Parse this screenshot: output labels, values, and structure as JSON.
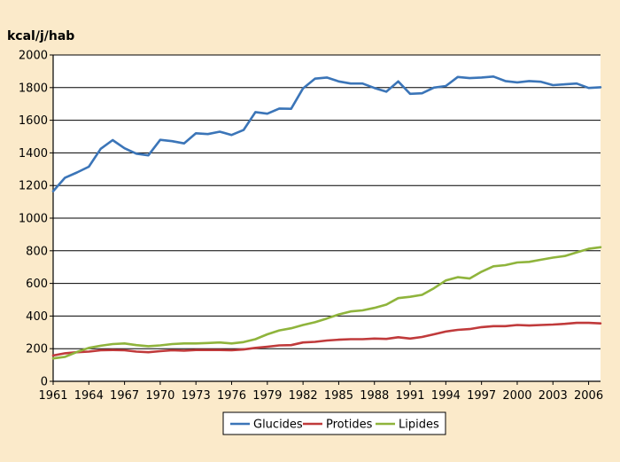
{
  "chart_data": {
    "type": "line",
    "title": "",
    "ylabel": "kcal/j/hab",
    "xlabel": "",
    "ylim": [
      0,
      2000
    ],
    "xlim": [
      1961,
      2007
    ],
    "grid": "horizontal",
    "legend_position": "bottom",
    "background_color": "#fbeaca",
    "y_ticks": [
      0,
      200,
      400,
      600,
      800,
      1000,
      1200,
      1400,
      1600,
      1800,
      2000
    ],
    "x_ticks": [
      1961,
      1964,
      1967,
      1970,
      1973,
      1976,
      1979,
      1982,
      1985,
      1988,
      1991,
      1994,
      1997,
      2000,
      2003,
      2006
    ],
    "x": [
      1961,
      1962,
      1963,
      1964,
      1965,
      1966,
      1967,
      1968,
      1969,
      1970,
      1971,
      1972,
      1973,
      1974,
      1975,
      1976,
      1977,
      1978,
      1979,
      1980,
      1981,
      1982,
      1983,
      1984,
      1985,
      1986,
      1987,
      1988,
      1989,
      1990,
      1991,
      1992,
      1993,
      1994,
      1995,
      1996,
      1997,
      1998,
      1999,
      2000,
      2001,
      2002,
      2003,
      2004,
      2005,
      2006,
      2007
    ],
    "series": [
      {
        "name": "Glucides",
        "color": "#3b75b8",
        "values": [
          1165,
          1248,
          1280,
          1315,
          1425,
          1478,
          1428,
          1395,
          1385,
          1480,
          1472,
          1458,
          1520,
          1515,
          1530,
          1510,
          1540,
          1650,
          1640,
          1672,
          1670,
          1795,
          1855,
          1862,
          1838,
          1825,
          1825,
          1798,
          1775,
          1838,
          1762,
          1765,
          1800,
          1810,
          1865,
          1858,
          1862,
          1868,
          1840,
          1832,
          1840,
          1836,
          1815,
          1820,
          1825,
          1798,
          1802
        ]
      },
      {
        "name": "Protides",
        "color": "#c03a3b",
        "values": [
          158,
          172,
          178,
          182,
          190,
          192,
          190,
          182,
          178,
          185,
          190,
          188,
          192,
          192,
          192,
          190,
          195,
          205,
          212,
          220,
          222,
          238,
          242,
          250,
          255,
          258,
          258,
          262,
          260,
          270,
          262,
          272,
          288,
          305,
          315,
          320,
          332,
          338,
          338,
          345,
          342,
          345,
          348,
          352,
          358,
          358,
          355
        ]
      },
      {
        "name": "Lipides",
        "color": "#8fb43c",
        "values": [
          140,
          150,
          180,
          205,
          218,
          228,
          232,
          222,
          215,
          220,
          228,
          232,
          232,
          235,
          238,
          232,
          240,
          258,
          288,
          312,
          325,
          345,
          362,
          385,
          410,
          428,
          435,
          450,
          470,
          510,
          518,
          530,
          570,
          618,
          638,
          630,
          672,
          705,
          712,
          728,
          732,
          745,
          758,
          768,
          790,
          812,
          822
        ]
      }
    ]
  }
}
